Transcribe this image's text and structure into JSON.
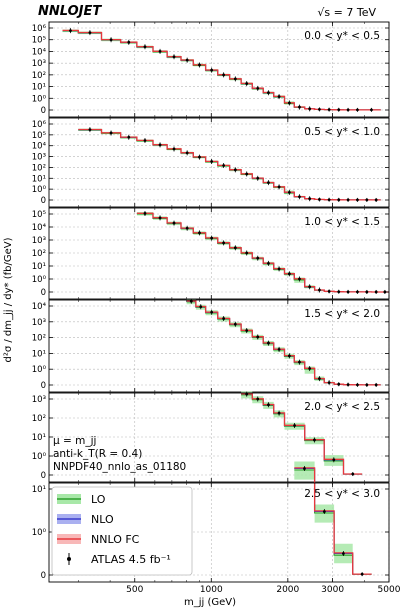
{
  "header": {
    "brand": "NNLOJET",
    "energy": "√s = 7 TeV"
  },
  "chart_data": {
    "type": "line",
    "style": "step-histogram-with-points",
    "xlabel": "m_jj (GeV)",
    "ylabel": "d²σ / dm_jj / dy* (fb/GeV)",
    "xscale": "log",
    "yscale": "symlog",
    "xlim": [
      230,
      5000
    ],
    "x_tick_labels": [
      "500",
      "1000",
      "2000",
      "3000",
      "5000"
    ],
    "x_ticks": [
      500,
      1000,
      2000,
      3000,
      5000
    ],
    "annotations": [
      "μ = m_jj",
      "anti-k_T(R = 0.4)",
      "NNPDF40_nnlo_as_01180"
    ],
    "legend_placement": "lower-left",
    "legend": [
      {
        "label": "LO",
        "color": "#2ca02c",
        "band": "#a8e8a8"
      },
      {
        "label": "NLO",
        "color": "#3a3acc",
        "band": "#aab0f0"
      },
      {
        "label": "NNLO FC",
        "color": "#e8383c",
        "band": "#f8b8b8"
      },
      {
        "label": "ATLAS 4.5 fb⁻¹",
        "color": "#000000",
        "marker": "point-with-errorbar"
      }
    ],
    "panels": [
      {
        "label": "0.0 < y* < 0.5",
        "ylim_exp": 6,
        "y_ticks": [
          "0",
          "10⁰",
          "10¹",
          "10²",
          "10³",
          "10⁴",
          "10⁵",
          "10⁶"
        ],
        "edges": [
          260,
          300,
          370,
          440,
          510,
          590,
          670,
          760,
          850,
          950,
          1060,
          1180,
          1310,
          1450,
          1600,
          1760,
          1940,
          2120,
          2330,
          2550,
          2780,
          3040,
          3310,
          3600,
          3920,
          4640
        ],
        "values": [
          600000,
          400000,
          100000,
          60000,
          25000,
          10000,
          3500,
          1800,
          700,
          250,
          100,
          45,
          18,
          7,
          3,
          1.4,
          0.6,
          0.25,
          0.1,
          0.05,
          0.03,
          0.02,
          0.01,
          0.01,
          0.01
        ],
        "lo_band": 0.25
      },
      {
        "label": "0.5 < y* < 1.0",
        "ylim_exp": 6,
        "y_ticks": [
          "0",
          "10⁰",
          "10¹",
          "10²",
          "10³",
          "10⁴",
          "10⁵",
          "10⁶"
        ],
        "edges": [
          300,
          370,
          440,
          510,
          590,
          670,
          760,
          850,
          950,
          1060,
          1180,
          1310,
          1450,
          1600,
          1760,
          1940,
          2120,
          2330,
          2550,
          2780,
          3040,
          3310,
          3600,
          3920,
          4270,
          4640
        ],
        "values": [
          300000,
          150000,
          60000,
          30000,
          12000,
          5000,
          2200,
          900,
          350,
          150,
          60,
          25,
          10,
          4,
          1.6,
          0.7,
          0.3,
          0.12,
          0.05,
          0.025,
          0.015,
          0.01,
          0.008,
          0.006,
          0.005
        ],
        "lo_band": 0.25
      },
      {
        "label": "1.0 < y* < 1.5",
        "ylim_exp": 5,
        "y_ticks": [
          "0",
          "10⁰",
          "10¹",
          "10²",
          "10³",
          "10⁴",
          "10⁵"
        ],
        "edges": [
          510,
          590,
          670,
          760,
          850,
          950,
          1060,
          1180,
          1310,
          1450,
          1600,
          1760,
          1940,
          2120,
          2330,
          2550,
          2780,
          3040,
          3310,
          3600,
          3920,
          4270,
          4640,
          5000
        ],
        "values": [
          110000,
          50000,
          20000,
          8000,
          3500,
          1400,
          600,
          250,
          100,
          40,
          16,
          6,
          2.5,
          1,
          0.4,
          0.15,
          0.05,
          0.02,
          0.01,
          0.005,
          0.004,
          0.003,
          0.003
        ],
        "lo_band": 0.3
      },
      {
        "label": "1.5 < y* < 2.0",
        "ylim_exp": 4,
        "y_ticks": [
          "0",
          "10⁰",
          "10¹",
          "10²",
          "10³",
          "10⁴"
        ],
        "edges": [
          800,
          870,
          950,
          1060,
          1180,
          1310,
          1450,
          1600,
          1760,
          1940,
          2120,
          2330,
          2550,
          2780,
          3040,
          3310,
          3600,
          3920,
          4270,
          4640
        ],
        "values": [
          20000,
          9000,
          4000,
          1600,
          700,
          280,
          110,
          45,
          18,
          7,
          2.8,
          1.1,
          0.4,
          0.15,
          0.05,
          0.02,
          0.01,
          0.005,
          0.004
        ],
        "lo_band": 0.35
      },
      {
        "label": "2.0 < y* < 2.5",
        "ylim_exp": 3,
        "y_ticks": [
          "0",
          "10⁰",
          "10¹",
          "10²",
          "10³"
        ],
        "edges": [
          1310,
          1450,
          1600,
          1760,
          1940,
          2330,
          2780,
          3310,
          3920
        ],
        "values": [
          1800,
          1000,
          500,
          180,
          40,
          7,
          0.8,
          0.05
        ],
        "lo_band": 0.4
      },
      {
        "label": "2.5 < y* < 3.0",
        "ylim_exp": 1,
        "y_ticks": [
          "0",
          "10⁰",
          "10¹"
        ],
        "edges": [
          2120,
          2550,
          3040,
          3600,
          4270
        ],
        "values": [
          30,
          3,
          0.5,
          0.02
        ],
        "lo_band": 0.45
      }
    ]
  }
}
